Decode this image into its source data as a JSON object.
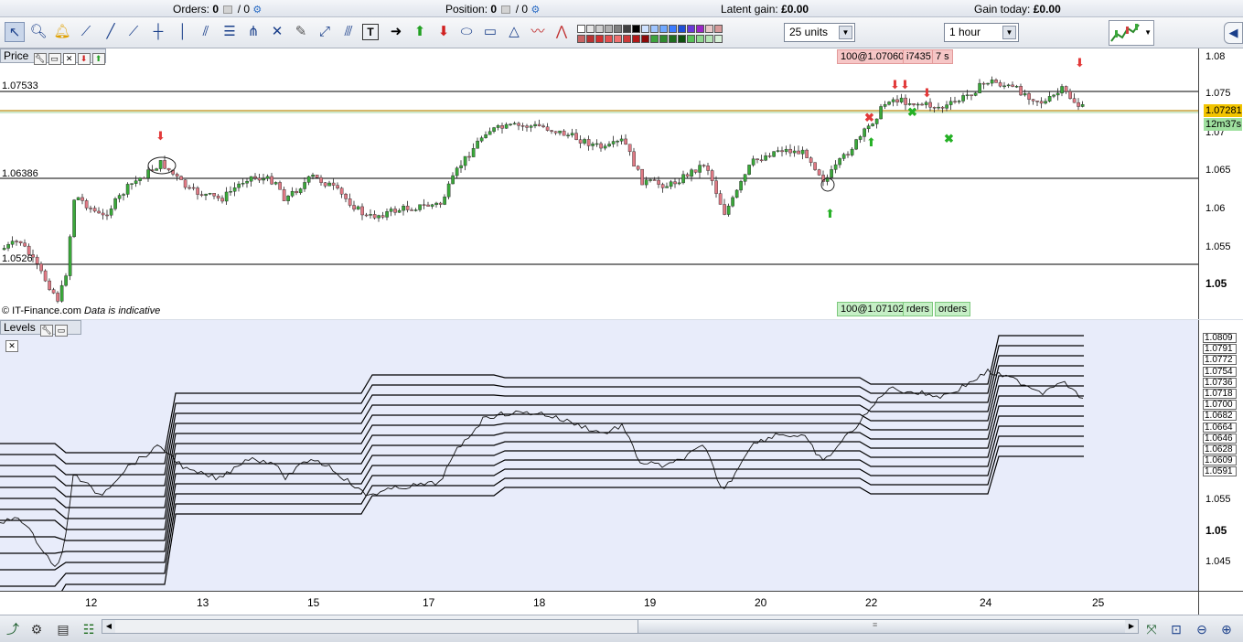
{
  "status": {
    "orders_label": "Orders:",
    "orders_value": "0",
    "orders_slash": "/ 0",
    "position_label": "Position:",
    "position_value": "0",
    "position_slash": "/ 0",
    "latent_gain_label": "Latent gain:",
    "latent_gain_value": "£0.00",
    "gain_today_label": "Gain today:",
    "gain_today_value": "£0.00"
  },
  "toolbar": {
    "tools": [
      "pointer-icon",
      "zoom-icon",
      "alert-bell-icon",
      "ruler-icon",
      "line-icon",
      "trendline-icon",
      "horizontal-line-icon",
      "vertical-line-icon",
      "parallel-lines-icon",
      "fibonacci-icon",
      "andrews-pitchfork-icon",
      "gann-icon",
      "erase-icon",
      "delete-icon",
      "channel-icon",
      "regression-icon",
      "text-icon",
      "arrow-icon",
      "up-arrow-icon",
      "down-arrow-icon",
      "ellipse-icon",
      "rectangle-icon",
      "triangle-icon",
      "polyline-icon",
      "zigzag-icon"
    ],
    "swatch_colors": [
      "#ffffff",
      "#e6e6e6",
      "#cfcfcf",
      "#b0b0b0",
      "#808080",
      "#404040",
      "#000000",
      "#cfe2ff",
      "#9fc5ff",
      "#6fa8ff",
      "#3c7cff",
      "#1f4fd6",
      "#6a3ad8",
      "#9b27c6",
      "#e8c8c8",
      "#d69a9a",
      "#c86464",
      "#b83232",
      "#d03030",
      "#e35050",
      "#ef7070",
      "#cc3a3a",
      "#b01818",
      "#8c0a0a",
      "#3da33d",
      "#2f8a2f",
      "#1e6d1e",
      "#0f500f",
      "#57c057",
      "#8dd68d",
      "#b5e5b5",
      "#d7f0d7"
    ],
    "units_value": "25 units",
    "timeframe_value": "1 hour"
  },
  "price_panel": {
    "title": "Price",
    "copyright": "© IT-Finance.com",
    "indicative": "Data is indicative",
    "left_level_labels": [
      "1.07533",
      "1.06386",
      "1.0526"
    ],
    "y_ticks": [
      "1.08",
      "1.075",
      "1.07",
      "1.065",
      "1.06",
      "1.055",
      "1.05"
    ],
    "current_price": "1.07281",
    "countdown": "12m37s",
    "sell_order_pill": "100@1.07060",
    "sell_order_tail": "i7435",
    "sell_order_tail2": "7 s",
    "buy_order_pill": "100@1.07102",
    "buy_order_tail": "rders",
    "buy_order_tail2": "orders"
  },
  "levels_panel": {
    "title": "Levels",
    "level_tags": [
      "1.0809",
      "1.0791",
      "1.0772",
      "1.0754",
      "1.0736",
      "1.0718",
      "1.0700",
      "1.0682",
      "1.0664",
      "1.0646",
      "1.0628",
      "1.0609",
      "1.0591"
    ],
    "y_ticks": [
      "1.055",
      "1.05",
      "1.045"
    ]
  },
  "date_axis": {
    "dates": [
      "12",
      "13",
      "15",
      "17",
      "18",
      "19",
      "20",
      "22",
      "24",
      "25"
    ]
  },
  "colors": {
    "bull_candle": "#3aa83a",
    "bear_candle": "#e07a85",
    "price_highlight": "#f2c400",
    "countdown_bg": "#9fe09f",
    "sell_pill_bg": "#f6c6c6",
    "buy_pill_bg": "#c6efc6"
  }
}
